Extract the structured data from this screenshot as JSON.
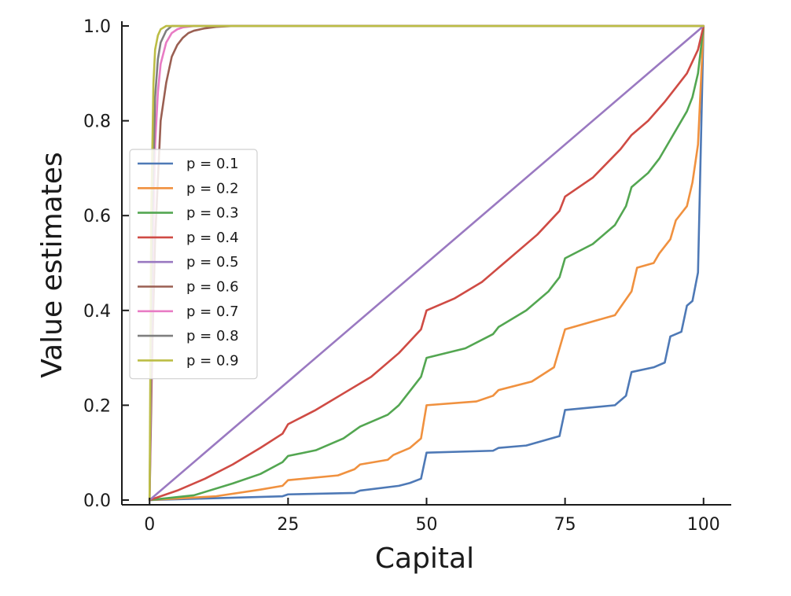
{
  "chart_data": {
    "type": "line",
    "title": "",
    "xlabel": "Capital",
    "ylabel": "Value estimates",
    "xlim": [
      -5,
      105
    ],
    "ylim": [
      -0.01,
      1.01
    ],
    "xticks": [
      0,
      25,
      50,
      75,
      100
    ],
    "xtick_labels": [
      "0",
      "25",
      "50",
      "75",
      "100"
    ],
    "yticks": [
      0.0,
      0.2,
      0.4,
      0.6,
      0.8,
      1.0
    ],
    "ytick_labels": [
      "0.0",
      "0.2",
      "0.4",
      "0.6",
      "0.8",
      "1.0"
    ],
    "grid": false,
    "legend_position": "center-left",
    "series": [
      {
        "name": "p = 0.1",
        "color": "#4e79b6",
        "x": [
          0,
          24,
          25,
          37,
          38,
          45,
          47,
          49,
          50,
          62,
          63,
          68,
          74,
          75,
          84,
          86,
          87,
          91,
          93,
          94,
          96,
          97,
          98,
          99,
          100
        ],
        "y": [
          0,
          0.008,
          0.012,
          0.015,
          0.02,
          0.03,
          0.036,
          0.045,
          0.1,
          0.104,
          0.11,
          0.115,
          0.135,
          0.19,
          0.2,
          0.22,
          0.27,
          0.28,
          0.29,
          0.345,
          0.355,
          0.41,
          0.42,
          0.48,
          1.0
        ]
      },
      {
        "name": "p = 0.2",
        "color": "#f0913f",
        "x": [
          0,
          12,
          20,
          24,
          25,
          34,
          37,
          38,
          43,
          44,
          47,
          49,
          50,
          59,
          62,
          63,
          69,
          73,
          75,
          84,
          87,
          88,
          91,
          92,
          94,
          95,
          97,
          98,
          99,
          100
        ],
        "y": [
          0,
          0.008,
          0.022,
          0.03,
          0.042,
          0.052,
          0.065,
          0.075,
          0.085,
          0.095,
          0.11,
          0.13,
          0.2,
          0.208,
          0.22,
          0.232,
          0.25,
          0.28,
          0.36,
          0.39,
          0.44,
          0.49,
          0.5,
          0.52,
          0.55,
          0.59,
          0.62,
          0.67,
          0.75,
          1.0
        ]
      },
      {
        "name": "p = 0.3",
        "color": "#53a651",
        "x": [
          0,
          8,
          15,
          20,
          24,
          25,
          30,
          35,
          38,
          43,
          45,
          47,
          49,
          50,
          57,
          62,
          63,
          68,
          72,
          74,
          75,
          80,
          84,
          86,
          87,
          90,
          92,
          94,
          95,
          97,
          98,
          99,
          100
        ],
        "y": [
          0,
          0.01,
          0.035,
          0.055,
          0.08,
          0.093,
          0.105,
          0.13,
          0.155,
          0.18,
          0.2,
          0.23,
          0.26,
          0.3,
          0.32,
          0.35,
          0.365,
          0.4,
          0.44,
          0.47,
          0.51,
          0.54,
          0.58,
          0.62,
          0.66,
          0.69,
          0.72,
          0.76,
          0.78,
          0.82,
          0.85,
          0.9,
          1.0
        ]
      },
      {
        "name": "p = 0.4",
        "color": "#cf4b44",
        "x": [
          0,
          5,
          10,
          15,
          20,
          24,
          25,
          30,
          35,
          40,
          45,
          49,
          50,
          55,
          60,
          62,
          65,
          70,
          74,
          75,
          80,
          85,
          87,
          90,
          93,
          95,
          97,
          99,
          100
        ],
        "y": [
          0,
          0.02,
          0.045,
          0.075,
          0.11,
          0.14,
          0.16,
          0.19,
          0.225,
          0.26,
          0.31,
          0.36,
          0.4,
          0.425,
          0.46,
          0.48,
          0.51,
          0.56,
          0.61,
          0.64,
          0.68,
          0.74,
          0.77,
          0.8,
          0.84,
          0.87,
          0.9,
          0.95,
          1.0
        ]
      },
      {
        "name": "p = 0.5",
        "color": "#9a79c1",
        "x": [
          0,
          100
        ],
        "y": [
          0,
          1.0
        ]
      },
      {
        "name": "p = 0.6",
        "color": "#9a5f52",
        "x": [
          0,
          0.5,
          1,
          2,
          3,
          4,
          5,
          6,
          7,
          8,
          10,
          12,
          15,
          20,
          100
        ],
        "y": [
          0,
          0.33,
          0.55,
          0.8,
          0.88,
          0.935,
          0.96,
          0.975,
          0.985,
          0.99,
          0.995,
          0.998,
          1.0,
          1.0,
          1.0
        ]
      },
      {
        "name": "p = 0.7",
        "color": "#e87cc4",
        "x": [
          0,
          0.5,
          1,
          1.5,
          2,
          3,
          4,
          5,
          6,
          8,
          100
        ],
        "y": [
          0,
          0.45,
          0.75,
          0.86,
          0.92,
          0.965,
          0.985,
          0.993,
          0.997,
          1.0,
          1.0
        ],
        "note": ""
      },
      {
        "name": "p = 0.8",
        "color": "#7f7f7f",
        "x": [
          0,
          0.5,
          1,
          1.5,
          2,
          3,
          4,
          100
        ],
        "y": [
          0,
          0.6,
          0.85,
          0.93,
          0.965,
          0.99,
          1.0,
          1.0
        ]
      },
      {
        "name": "p = 0.9",
        "color": "#bcbd45",
        "x": [
          0,
          0.3,
          0.7,
          1,
          1.5,
          2,
          3,
          100
        ],
        "y": [
          0,
          0.6,
          0.88,
          0.95,
          0.98,
          0.993,
          1.0,
          1.0
        ]
      }
    ]
  }
}
